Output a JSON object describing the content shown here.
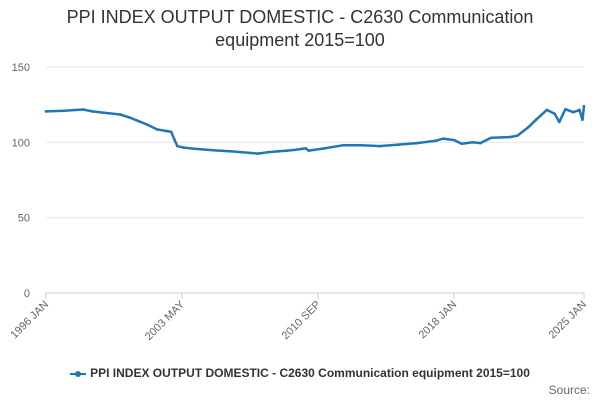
{
  "chart_data": {
    "type": "line",
    "title_line1": "PPI INDEX OUTPUT DOMESTIC - C2630 Communication",
    "title_line2": "equipment 2015=100",
    "xlabel": "",
    "ylabel": "",
    "ylim": [
      0,
      150
    ],
    "yticks": [
      "0",
      "50",
      "100",
      "150"
    ],
    "xlim": [
      "1996-01",
      "2025-01"
    ],
    "xticks": [
      {
        "date": "1996-01",
        "label": "1996 JAN"
      },
      {
        "date": "2003-05",
        "label": "2003 MAY"
      },
      {
        "date": "2010-09",
        "label": "2010 SEP"
      },
      {
        "date": "2018-01",
        "label": "2018 JAN"
      },
      {
        "date": "2025-01",
        "label": "2025 JAN"
      }
    ],
    "grid": true,
    "legend_position": "bottom",
    "color": "#1f78b4",
    "series": [
      {
        "name": "PPI INDEX OUTPUT DOMESTIC - C2630 Communication equipment 2015=100",
        "points": [
          [
            "1996-01",
            120.5
          ],
          [
            "1997-01",
            121.0
          ],
          [
            "1998-01",
            121.8
          ],
          [
            "1998-07",
            120.5
          ],
          [
            "1999-01",
            119.8
          ],
          [
            "2000-01",
            118.5
          ],
          [
            "2000-07",
            116.5
          ],
          [
            "2001-01",
            114.0
          ],
          [
            "2001-07",
            111.5
          ],
          [
            "2002-01",
            108.5
          ],
          [
            "2002-07",
            107.5
          ],
          [
            "2002-10",
            107.0
          ],
          [
            "2002-12",
            102.0
          ],
          [
            "2003-02",
            97.5
          ],
          [
            "2003-06",
            96.5
          ],
          [
            "2004-01",
            95.8
          ],
          [
            "2005-01",
            94.8
          ],
          [
            "2006-01",
            94.0
          ],
          [
            "2007-01",
            93.0
          ],
          [
            "2007-06",
            92.5
          ],
          [
            "2008-01",
            93.5
          ],
          [
            "2008-07",
            94.0
          ],
          [
            "2009-01",
            94.5
          ],
          [
            "2009-06",
            95.0
          ],
          [
            "2010-01",
            96.0
          ],
          [
            "2010-03",
            94.5
          ],
          [
            "2011-01",
            96.0
          ],
          [
            "2012-01",
            98.0
          ],
          [
            "2013-01",
            98.0
          ],
          [
            "2014-01",
            97.5
          ],
          [
            "2015-01",
            98.5
          ],
          [
            "2016-01",
            99.5
          ],
          [
            "2017-01",
            101.0
          ],
          [
            "2017-06",
            102.5
          ],
          [
            "2018-01",
            101.5
          ],
          [
            "2018-06",
            99.0
          ],
          [
            "2019-01",
            100.0
          ],
          [
            "2019-06",
            99.5
          ],
          [
            "2020-01",
            103.0
          ],
          [
            "2021-01",
            103.5
          ],
          [
            "2021-06",
            104.5
          ],
          [
            "2022-01",
            110.0
          ],
          [
            "2022-06",
            115.0
          ],
          [
            "2023-01",
            121.5
          ],
          [
            "2023-06",
            119.0
          ],
          [
            "2023-09",
            113.5
          ],
          [
            "2024-01",
            122.0
          ],
          [
            "2024-06",
            120.0
          ],
          [
            "2024-10",
            121.5
          ],
          [
            "2024-12",
            115.0
          ],
          [
            "2025-01",
            124.0
          ]
        ]
      }
    ]
  },
  "footer": {
    "source_label": "Source:"
  }
}
